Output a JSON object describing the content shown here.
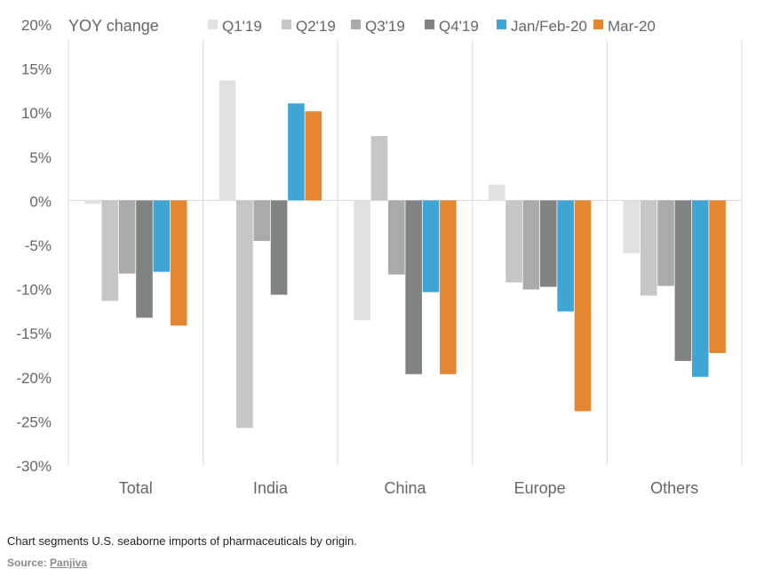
{
  "chart_data": {
    "type": "bar",
    "ylabel": "YOY change",
    "ylim": [
      -30,
      20
    ],
    "yticks": [
      20,
      15,
      10,
      5,
      0,
      -5,
      -10,
      -15,
      -20,
      -25,
      -30
    ],
    "ytick_labels": [
      "20%",
      "15%",
      "10%",
      "5%",
      "0%",
      "-5%",
      "-10%",
      "-15%",
      "-20%",
      "-25%",
      "-30%"
    ],
    "categories": [
      "Total",
      "India",
      "China",
      "Europe",
      "Others"
    ],
    "legend_position": "top",
    "series": [
      {
        "name": "Q1'19",
        "color": "#e0e1e0",
        "values": [
          -0.4,
          13.6,
          -13.6,
          1.8,
          -6.0
        ]
      },
      {
        "name": "Q2'19",
        "color": "#c5c7c6",
        "values": [
          -11.4,
          -25.8,
          7.3,
          -9.3,
          -10.8
        ]
      },
      {
        "name": "Q3'19",
        "color": "#a8abaa",
        "values": [
          -8.3,
          -4.6,
          -8.4,
          -10.1,
          -9.7
        ]
      },
      {
        "name": "Q4'19",
        "color": "#7f8482",
        "values": [
          -13.3,
          -10.7,
          -19.7,
          -9.8,
          -18.2
        ]
      },
      {
        "name": "Jan/Feb-20",
        "color": "#3ea5d4",
        "values": [
          -8.1,
          11.0,
          -10.4,
          -12.6,
          -20.0
        ]
      },
      {
        "name": "Mar-20",
        "color": "#e48530",
        "values": [
          -14.2,
          10.1,
          -19.7,
          -23.9,
          -17.3
        ]
      }
    ]
  },
  "caption": {
    "text": "Chart segments U.S. seaborne imports of pharmaceuticals by origin.",
    "source_label": "Source:",
    "source_name": "Panjiva"
  }
}
